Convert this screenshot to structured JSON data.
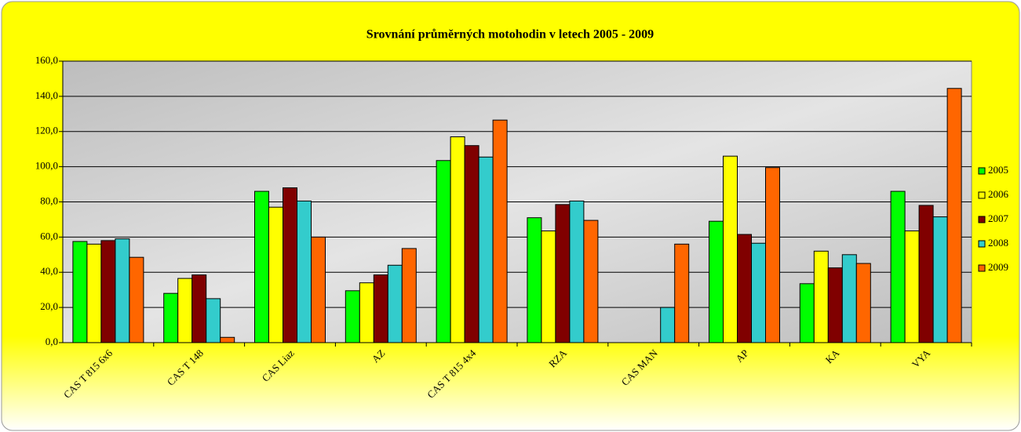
{
  "chart_data": {
    "type": "bar",
    "title": "Srovnání průměrných motohodin v letech 2005 - 2009",
    "categories": [
      "CAS T 815 6x6",
      "CAS T 148",
      "CAS Liaz",
      "AZ",
      "CAS T 815 4x4",
      "RZA",
      "CAS MAN",
      "AP",
      "KA",
      "VYA"
    ],
    "series": [
      {
        "name": "2005",
        "color": "#00ff00",
        "values": [
          57.5,
          28,
          86,
          29.5,
          103.5,
          71,
          0,
          69,
          33.5,
          86
        ]
      },
      {
        "name": "2006",
        "color": "#ffff00",
        "values": [
          56,
          36.5,
          77,
          34,
          117,
          63.5,
          0,
          106,
          52,
          63.5
        ]
      },
      {
        "name": "2007",
        "color": "#800000",
        "values": [
          58,
          38.5,
          88,
          38.5,
          112,
          78.5,
          0,
          61.5,
          42.5,
          78
        ]
      },
      {
        "name": "2008",
        "color": "#33cccc",
        "values": [
          59,
          25,
          80.5,
          44,
          105.5,
          80.5,
          20,
          56.5,
          50,
          71.5
        ]
      },
      {
        "name": "2009",
        "color": "#ff6600",
        "values": [
          48.5,
          3,
          60,
          53.5,
          126.5,
          69.5,
          56,
          99.5,
          45,
          144.5
        ]
      }
    ],
    "ylim": [
      0,
      160
    ],
    "yticks": [
      {
        "value": 0,
        "label": "0,0"
      },
      {
        "value": 20,
        "label": "20,0"
      },
      {
        "value": 40,
        "label": "40,0"
      },
      {
        "value": 60,
        "label": "60,0"
      },
      {
        "value": 80,
        "label": "80,0"
      },
      {
        "value": 100,
        "label": "100,0"
      },
      {
        "value": 120,
        "label": "120,0"
      },
      {
        "value": 140,
        "label": "140,0"
      },
      {
        "value": 160,
        "label": "160,0"
      }
    ],
    "grid": true,
    "legend": "right"
  }
}
